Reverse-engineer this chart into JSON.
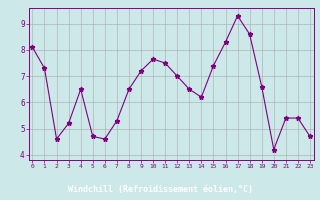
{
  "x": [
    0,
    1,
    2,
    3,
    4,
    5,
    6,
    7,
    8,
    9,
    10,
    11,
    12,
    13,
    14,
    15,
    16,
    17,
    18,
    19,
    20,
    21,
    22,
    23
  ],
  "y": [
    8.1,
    7.3,
    4.6,
    5.2,
    6.5,
    4.7,
    4.6,
    5.3,
    6.5,
    7.2,
    7.65,
    7.5,
    7.0,
    6.5,
    6.2,
    7.4,
    8.3,
    9.3,
    8.6,
    6.6,
    4.2,
    5.4,
    5.4,
    4.7
  ],
  "line_color": "#800080",
  "marker": "*",
  "marker_size": 3.5,
  "bg_color": "#cce8e8",
  "grid_color": "#aaaaaa",
  "xlabel": "Windchill (Refroidissement éolien,°C)",
  "xlabel_bg": "#800080",
  "xlabel_color": "#ffffff",
  "yticks": [
    4,
    5,
    6,
    7,
    8,
    9
  ],
  "xticks": [
    0,
    1,
    2,
    3,
    4,
    5,
    6,
    7,
    8,
    9,
    10,
    11,
    12,
    13,
    14,
    15,
    16,
    17,
    18,
    19,
    20,
    21,
    22,
    23
  ],
  "ylim": [
    3.8,
    9.6
  ],
  "xlim": [
    -0.3,
    23.3
  ],
  "spine_color": "#800080"
}
